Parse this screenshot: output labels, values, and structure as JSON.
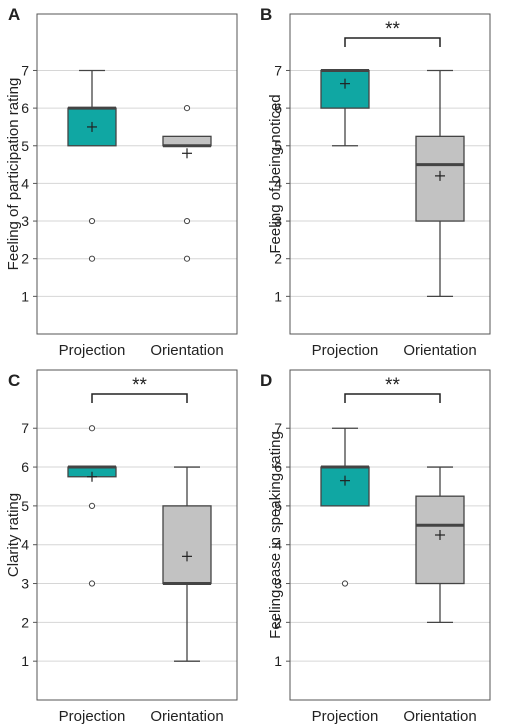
{
  "chart_data": [
    {
      "panel": "A",
      "type": "boxplot",
      "ylabel": "Feeling of participation rating",
      "ylim": [
        0,
        8.5
      ],
      "yticks": [
        1,
        2,
        3,
        4,
        5,
        6,
        7
      ],
      "grid": true,
      "significance": "",
      "categories": [
        "Projection",
        "Orientation"
      ],
      "colors": [
        "#10a7a3",
        "#c2c2c2"
      ],
      "boxes": [
        {
          "q1": 5,
          "median": 6,
          "q3": 6,
          "whisker_low": 5,
          "whisker_high": 7,
          "mean": 5.5,
          "outliers": [
            3,
            2
          ]
        },
        {
          "q1": 5,
          "median": 5,
          "q3": 5.25,
          "whisker_low": 5,
          "whisker_high": 5.25,
          "mean": 4.8,
          "outliers": [
            6,
            3,
            2
          ]
        }
      ]
    },
    {
      "panel": "B",
      "type": "boxplot",
      "ylabel": "Feeling of being noticed",
      "ylim": [
        0,
        8.5
      ],
      "yticks": [
        1,
        2,
        3,
        4,
        5,
        6,
        7
      ],
      "grid": true,
      "significance": "**",
      "categories": [
        "Projection",
        "Orientation"
      ],
      "colors": [
        "#10a7a3",
        "#c2c2c2"
      ],
      "boxes": [
        {
          "q1": 6,
          "median": 7,
          "q3": 7,
          "whisker_low": 5,
          "whisker_high": 7,
          "mean": 6.65,
          "outliers": []
        },
        {
          "q1": 3,
          "median": 4.5,
          "q3": 5.25,
          "whisker_low": 1,
          "whisker_high": 7,
          "mean": 4.2,
          "outliers": []
        }
      ]
    },
    {
      "panel": "C",
      "type": "boxplot",
      "ylabel": "Clarity rating",
      "ylim": [
        0,
        8.5
      ],
      "yticks": [
        1,
        2,
        3,
        4,
        5,
        6,
        7
      ],
      "grid": true,
      "significance": "**",
      "categories": [
        "Projection",
        "Orientation"
      ],
      "colors": [
        "#10a7a3",
        "#c2c2c2"
      ],
      "boxes": [
        {
          "q1": 5.75,
          "median": 6,
          "q3": 6,
          "whisker_low": 5.75,
          "whisker_high": 6,
          "mean": 5.75,
          "outliers": [
            7,
            5,
            3
          ]
        },
        {
          "q1": 3,
          "median": 3,
          "q3": 5,
          "whisker_low": 1,
          "whisker_high": 6,
          "mean": 3.7,
          "outliers": []
        }
      ]
    },
    {
      "panel": "D",
      "type": "boxplot",
      "ylabel": "Feeling ease in speaking rating",
      "ylim": [
        0,
        8.5
      ],
      "yticks": [
        1,
        2,
        3,
        4,
        5,
        6,
        7
      ],
      "grid": true,
      "significance": "**",
      "categories": [
        "Projection",
        "Orientation"
      ],
      "colors": [
        "#10a7a3",
        "#c2c2c2"
      ],
      "boxes": [
        {
          "q1": 5,
          "median": 6,
          "q3": 6,
          "whisker_low": 5,
          "whisker_high": 7,
          "mean": 5.65,
          "outliers": [
            3
          ]
        },
        {
          "q1": 3,
          "median": 4.5,
          "q3": 5.25,
          "whisker_low": 2,
          "whisker_high": 6,
          "mean": 4.25,
          "outliers": []
        }
      ]
    }
  ]
}
